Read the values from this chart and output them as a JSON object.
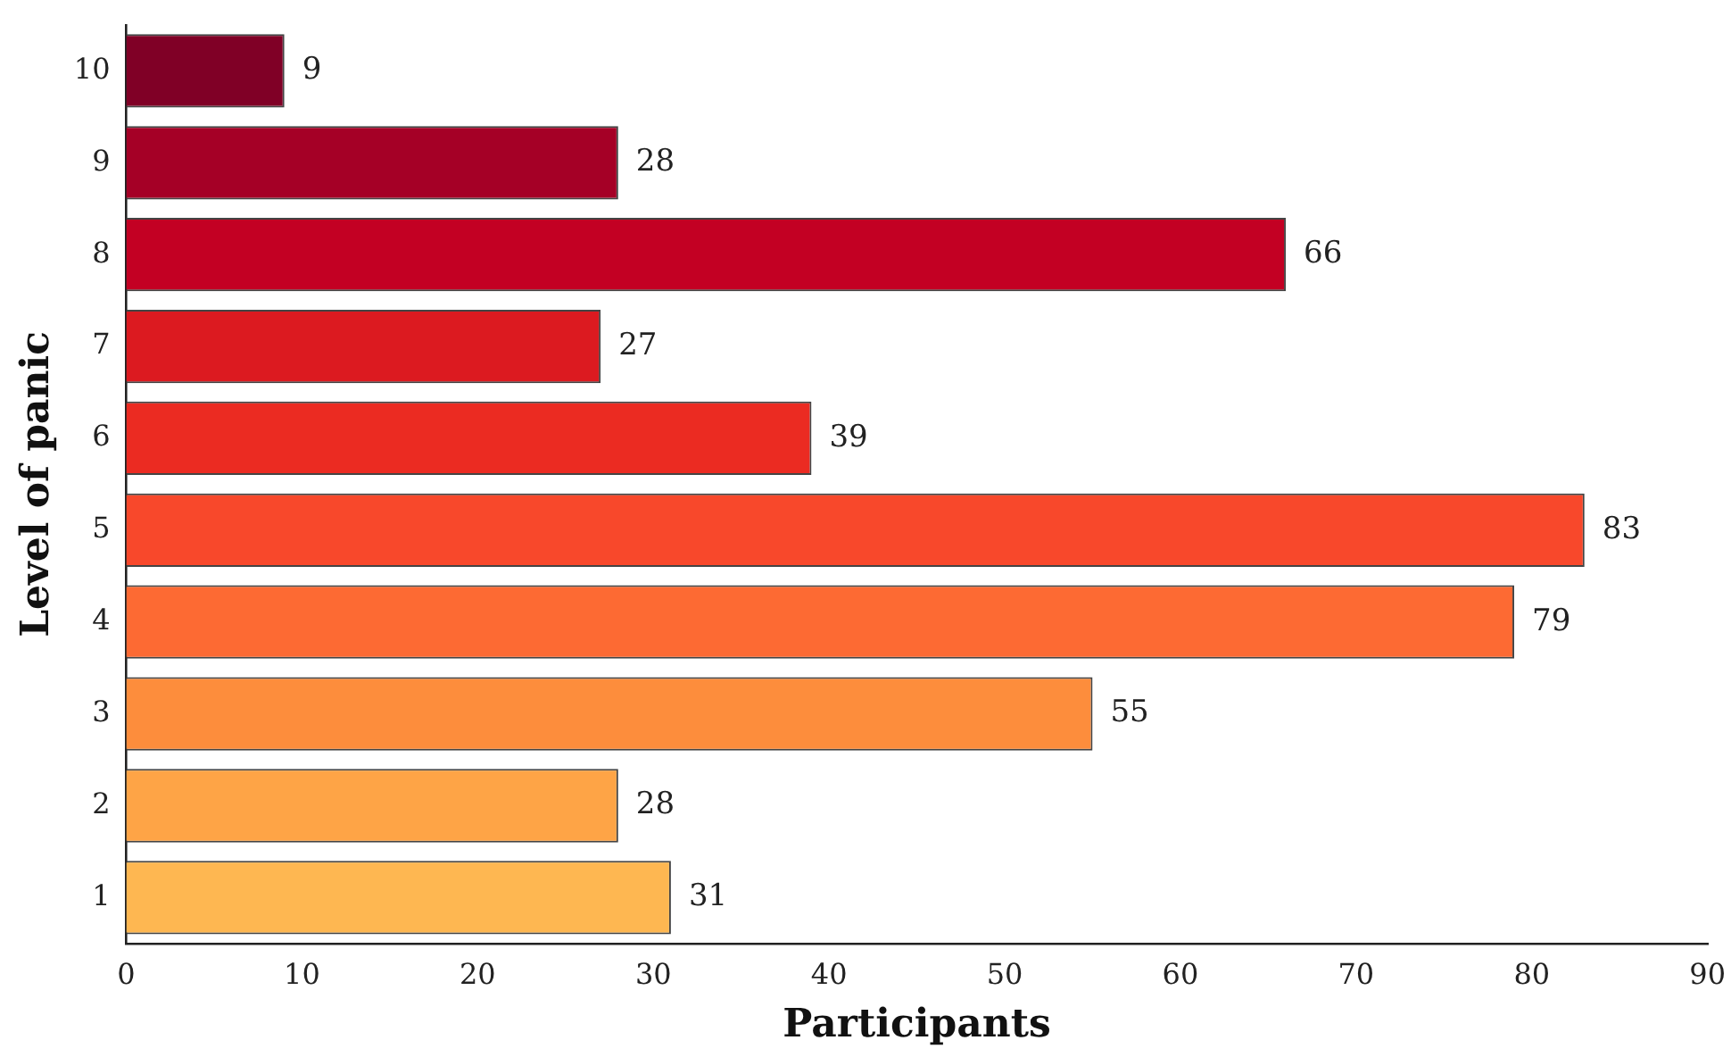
{
  "chart_data": {
    "type": "bar",
    "orientation": "horizontal",
    "xlabel": "Participants",
    "ylabel": "Level of panic",
    "categories": [
      "10",
      "9",
      "8",
      "7",
      "6",
      "5",
      "4",
      "3",
      "2",
      "1"
    ],
    "values": [
      9,
      28,
      66,
      27,
      39,
      83,
      79,
      55,
      28,
      31
    ],
    "colors": [
      "#800026",
      "#a50026",
      "#c30023",
      "#dc1a20",
      "#eb2b22",
      "#f8482b",
      "#fd6a33",
      "#fd8d3c",
      "#fea446",
      "#feb751"
    ],
    "xlim": [
      0,
      90
    ],
    "xticks": [
      0,
      10,
      20,
      30,
      40,
      50,
      60,
      70,
      80,
      90
    ],
    "data_labels": true,
    "grid": false,
    "legend": false
  }
}
